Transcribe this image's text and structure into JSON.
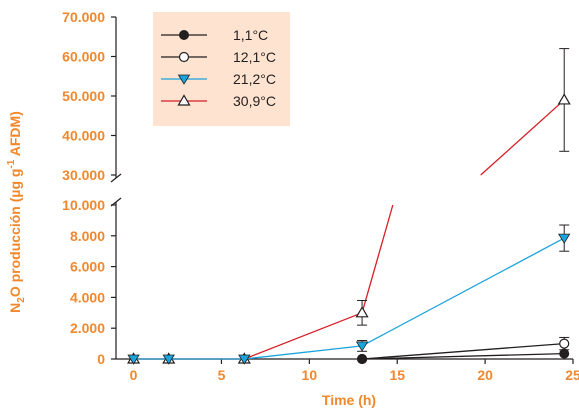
{
  "chart_data": {
    "type": "line",
    "title": "",
    "xlabel": "Time (h)",
    "ylabel": {
      "prefix": "N",
      "sub": "2",
      "mid": "O producción (µg g",
      "sup": "-1",
      "suffix": " AFDM)"
    },
    "x_ticks": [
      "0",
      "5",
      "10",
      "15",
      "20",
      "25"
    ],
    "xlim": [
      -1,
      25
    ],
    "y_ticks_lower": [
      "0",
      "2.000",
      "4.000",
      "6.000",
      "8.000",
      "10.000"
    ],
    "y_ticks_upper": [
      "30.000",
      "40.000",
      "50.000",
      "60.000",
      "70.000"
    ],
    "ylim_lower": [
      0,
      10000
    ],
    "ylim_upper": [
      30000,
      70000
    ],
    "axis_break": true,
    "grid": false,
    "legend_position": "top-left",
    "series": [
      {
        "name": "1,1°C",
        "color": "#231f20",
        "marker": "circle-filled",
        "x": [
          13,
          24.5
        ],
        "y": [
          0,
          350
        ],
        "err": [
          0,
          0
        ]
      },
      {
        "name": "12,1°C",
        "color": "#231f20",
        "marker": "circle-open",
        "x": [
          13,
          24.5
        ],
        "y": [
          0,
          1000
        ],
        "err": [
          0,
          400
        ]
      },
      {
        "name": "21,2°C",
        "color": "#1ba3dc",
        "marker": "triangle-down-filled",
        "x": [
          0,
          2,
          6.3,
          13,
          24.5
        ],
        "y": [
          0,
          0,
          0,
          850,
          7850
        ],
        "err": [
          0,
          0,
          0,
          350,
          850
        ]
      },
      {
        "name": "30,9°C",
        "color": "#d71f26",
        "marker": "triangle-up-open",
        "x": [
          0,
          2,
          6.3,
          13,
          24.5
        ],
        "y": [
          0,
          0,
          0,
          3000,
          49000
        ],
        "err": [
          0,
          0,
          0,
          800,
          13000
        ]
      }
    ]
  }
}
